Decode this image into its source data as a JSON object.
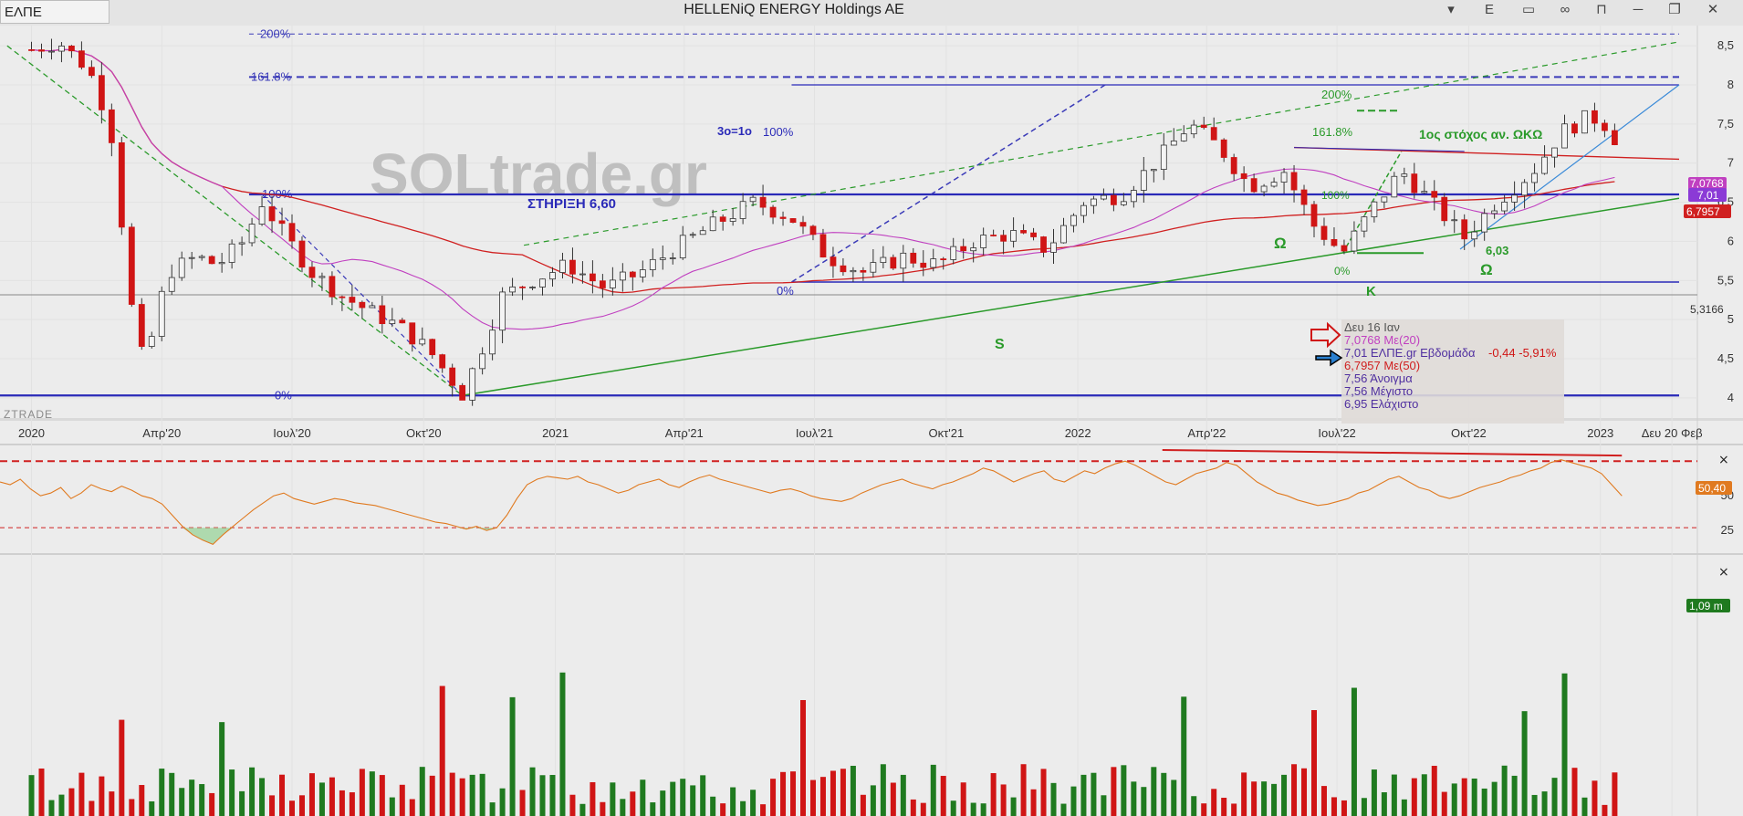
{
  "window": {
    "ticker": "ΕΛΠΕ",
    "title": "HELLENiQ ENERGY Holdings AE",
    "toolbar_icons": [
      "dropdown-icon",
      "e-letter-icon",
      "panel-icon",
      "infinity-icon",
      "lock-icon",
      "minimize-icon",
      "restore-icon",
      "close-icon"
    ],
    "toolbar_e_label": "E"
  },
  "colors": {
    "up": "#1f7a1f",
    "down": "#d01515",
    "ma20": "#c040c0",
    "ma50": "#d02020",
    "level_line": "#2a2ab8",
    "fib_dash": "#3a3ab8",
    "green_trend": "#2a9a2a",
    "rsi": "#e07a20",
    "watermark": "#b8b8b8"
  },
  "chart_data": [
    {
      "type": "candlestick",
      "title": "HELLENiQ ENERGY Holdings AE",
      "period": "weekly",
      "x_tick_labels": [
        "2020",
        "Απρ'20",
        "Ιουλ'20",
        "Οκτ'20",
        "2021",
        "Απρ'21",
        "Ιουλ'21",
        "Οκτ'21",
        "2022",
        "Απρ'22",
        "Ιουλ'22",
        "Οκτ'22",
        "2023",
        "Δευ 20 Φεβ"
      ],
      "y_tick_labels": [
        "4",
        "4,5",
        "5",
        "5,5",
        "6",
        "6,5",
        "7",
        "7,5",
        "8",
        "8,5"
      ],
      "ylim": [
        3.8,
        8.7
      ],
      "close_series_keypoints": [
        {
          "x": "2020-01-01",
          "y": 8.45
        },
        {
          "x": "2020-01-20",
          "y": 8.55
        },
        {
          "x": "2020-02-10",
          "y": 8.2
        },
        {
          "x": "2020-02-25",
          "y": 7.5
        },
        {
          "x": "2020-03-12",
          "y": 5.0
        },
        {
          "x": "2020-03-20",
          "y": 4.4
        },
        {
          "x": "2020-04-05",
          "y": 5.6
        },
        {
          "x": "2020-04-25",
          "y": 5.8
        },
        {
          "x": "2020-05-10",
          "y": 5.7
        },
        {
          "x": "2020-05-28",
          "y": 6.0
        },
        {
          "x": "2020-06-10",
          "y": 6.5
        },
        {
          "x": "2020-06-25",
          "y": 6.1
        },
        {
          "x": "2020-07-15",
          "y": 5.6
        },
        {
          "x": "2020-08-05",
          "y": 5.3
        },
        {
          "x": "2020-08-25",
          "y": 5.1
        },
        {
          "x": "2020-09-15",
          "y": 4.9
        },
        {
          "x": "2020-10-05",
          "y": 4.6
        },
        {
          "x": "2020-10-28",
          "y": 4.05
        },
        {
          "x": "2020-11-10",
          "y": 4.6
        },
        {
          "x": "2020-11-25",
          "y": 5.3
        },
        {
          "x": "2020-12-15",
          "y": 5.5
        },
        {
          "x": "2021-01-10",
          "y": 5.7
        },
        {
          "x": "2021-02-05",
          "y": 5.4
        },
        {
          "x": "2021-03-01",
          "y": 5.6
        },
        {
          "x": "2021-03-25",
          "y": 5.9
        },
        {
          "x": "2021-04-20",
          "y": 6.2
        },
        {
          "x": "2021-05-20",
          "y": 6.5
        },
        {
          "x": "2021-06-15",
          "y": 6.3
        },
        {
          "x": "2021-07-10",
          "y": 5.8
        },
        {
          "x": "2021-08-05",
          "y": 5.6
        },
        {
          "x": "2021-09-01",
          "y": 5.8
        },
        {
          "x": "2021-09-25",
          "y": 5.7
        },
        {
          "x": "2021-10-20",
          "y": 6.0
        },
        {
          "x": "2021-11-15",
          "y": 6.1
        },
        {
          "x": "2021-12-10",
          "y": 5.9
        },
        {
          "x": "2022-01-05",
          "y": 6.5
        },
        {
          "x": "2022-02-01",
          "y": 6.6
        },
        {
          "x": "2022-03-01",
          "y": 7.1
        },
        {
          "x": "2022-03-20",
          "y": 7.5
        },
        {
          "x": "2022-04-10",
          "y": 7.2
        },
        {
          "x": "2022-05-01",
          "y": 6.7
        },
        {
          "x": "2022-05-25",
          "y": 6.9
        },
        {
          "x": "2022-06-15",
          "y": 6.2
        },
        {
          "x": "2022-07-05",
          "y": 5.85
        },
        {
          "x": "2022-07-25",
          "y": 6.4
        },
        {
          "x": "2022-08-15",
          "y": 6.9
        },
        {
          "x": "2022-09-05",
          "y": 6.5
        },
        {
          "x": "2022-09-28",
          "y": 6.05
        },
        {
          "x": "2022-10-20",
          "y": 6.5
        },
        {
          "x": "2022-11-15",
          "y": 6.9
        },
        {
          "x": "2022-12-05",
          "y": 7.4
        },
        {
          "x": "2022-12-25",
          "y": 7.6
        },
        {
          "x": "2023-01-09",
          "y": 7.45
        },
        {
          "x": "2023-01-16",
          "y": 7.01
        }
      ],
      "horizontal_levels": [
        {
          "y": 8.65,
          "label": "200%",
          "style": "dashed"
        },
        {
          "y": 8.1,
          "label": "161.8%",
          "style": "dashed"
        },
        {
          "y": 6.6,
          "label": "100%",
          "style": "solid"
        },
        {
          "y": 5.48,
          "label": "0%",
          "style": "solid"
        },
        {
          "y": 4.03,
          "label": "0%",
          "style": "solid"
        }
      ],
      "annotations": {
        "watermark": "SOLtrade.gr",
        "support_label": "ΣΤΗΡΙΞΗ 6,60",
        "fib_top_label": "3ο=1ο",
        "fib_100": "100%",
        "fib_0": "0%",
        "fib_2_200": "200%",
        "fib_2_1618": "161.8%",
        "fib_2_100": "100%",
        "fib_2_0": "0%",
        "target_label": "1ος στόχος αν. ΩΚΩ",
        "omega1": "Ω",
        "omega2": "Ω",
        "kappa": "Κ",
        "s_label": "S",
        "price_603": "6,03",
        "ztrade": "ZTRADE"
      },
      "price_badges": [
        {
          "text": "7,0768",
          "color": "#c040c0"
        },
        {
          "text": "7,01",
          "color": "#8b3ad6"
        },
        {
          "text": "6,7957",
          "color": "#d02020"
        },
        {
          "text": "5,3166",
          "color": "none"
        }
      ],
      "info_box": {
        "date": "Δευ 16 Ιαν",
        "lines": [
          {
            "text": "7,0768 Με(20)",
            "color": "#c040c0"
          },
          {
            "text": "7,01 ΕΛΠΕ.gr Εβδομάδα",
            "color": "#5030a0",
            "extra": "-0,44 -5,91%"
          },
          {
            "text": "6,7957 Με(50)",
            "color": "#d02020"
          },
          {
            "text": "7,56 Άνοιγμα",
            "color": "#5030a0"
          },
          {
            "text": "7,56 Μέγιστο",
            "color": "#5030a0"
          },
          {
            "text": "6,95 Ελάχιστο",
            "color": "#5030a0"
          }
        ]
      }
    },
    {
      "type": "line",
      "name_shown": "",
      "indicator": "RSI",
      "y_tick_labels": [
        "50",
        "25"
      ],
      "current_value_label": "50,40",
      "current_value": 50.4,
      "ylim": [
        10,
        85
      ],
      "upper_dashed": 75,
      "lower_dashed": 27,
      "values": [
        60,
        58,
        62,
        55,
        50,
        52,
        56,
        48,
        52,
        58,
        55,
        53,
        57,
        54,
        50,
        48,
        44,
        36,
        28,
        22,
        18,
        15,
        22,
        28,
        34,
        40,
        45,
        50,
        52,
        48,
        46,
        44,
        46,
        48,
        47,
        45,
        44,
        43,
        41,
        39,
        37,
        35,
        33,
        31,
        30,
        28,
        26,
        28,
        25,
        27,
        36,
        48,
        58,
        62,
        64,
        63,
        62,
        64,
        60,
        58,
        55,
        52,
        54,
        58,
        60,
        62,
        58,
        56,
        60,
        63,
        65,
        62,
        60,
        58,
        56,
        54,
        52,
        54,
        55,
        53,
        50,
        48,
        47,
        46,
        48,
        52,
        55,
        58,
        60,
        62,
        59,
        57,
        55,
        58,
        60,
        63,
        66,
        70,
        68,
        64,
        60,
        63,
        66,
        68,
        62,
        60,
        64,
        68,
        66,
        70,
        73,
        75,
        72,
        68,
        64,
        60,
        58,
        62,
        66,
        68,
        70,
        74,
        72,
        66,
        60,
        56,
        52,
        50,
        47,
        45,
        43,
        44,
        46,
        48,
        52,
        54,
        58,
        62,
        64,
        60,
        56,
        54,
        50,
        48,
        50,
        53,
        56,
        58,
        60,
        63,
        65,
        68,
        70,
        74,
        76,
        74,
        72,
        70,
        66,
        58,
        50
      ]
    },
    {
      "type": "bar",
      "indicator": "Volume",
      "current_value_label": "1,09 m",
      "volume_pattern": "weekly volume bars, green for up weeks and red for down weeks"
    }
  ]
}
